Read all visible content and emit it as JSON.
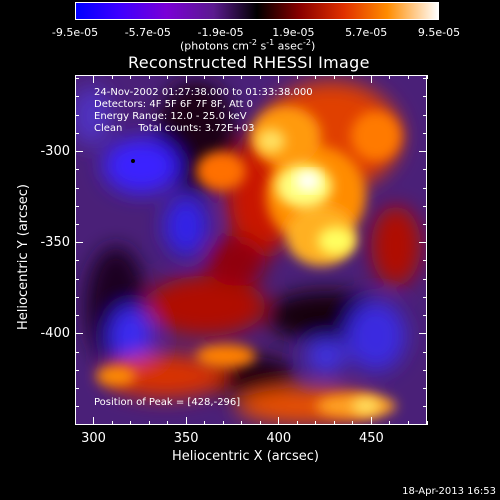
{
  "colorbar": {
    "ticks": [
      "-9.5e-05",
      "-5.7e-05",
      "-1.9e-05",
      "1.9e-05",
      "5.7e-05",
      "9.5e-05"
    ],
    "unit_prefix": "(photons cm",
    "unit_exp1": "-2",
    "unit_mid": " s",
    "unit_exp2": "-1",
    "unit_mid2": " asec",
    "unit_exp3": "-2",
    "unit_suffix": ")"
  },
  "chart_data": {
    "type": "heatmap",
    "title": "Reconstructed RHESSI Image",
    "xlabel": "Heliocentric X (arcsec)",
    "ylabel": "Heliocentric Y (arcsec)",
    "xlim": [
      290,
      480
    ],
    "ylim": [
      -450,
      -258
    ],
    "x_ticks": [
      "300",
      "350",
      "400",
      "450"
    ],
    "y_ticks": [
      "-300",
      "-350",
      "-400"
    ],
    "color_range": [
      -9.5e-05,
      9.5e-05
    ],
    "annotations": {
      "time": "24-Nov-2002 01:27:38.000 to 01:33:38.000",
      "detectors": "Detectors: 4F 5F 6F 7F 8F, Att 0",
      "energy": "Energy Range: 12.0 - 25.0 keV",
      "clean": "Clean     Total counts: 3.72E+03",
      "peak": "Position of Peak = [428,-296]"
    },
    "peak_position": [
      428,
      -296
    ]
  },
  "timestamp": "18-Apr-2013 16:53"
}
